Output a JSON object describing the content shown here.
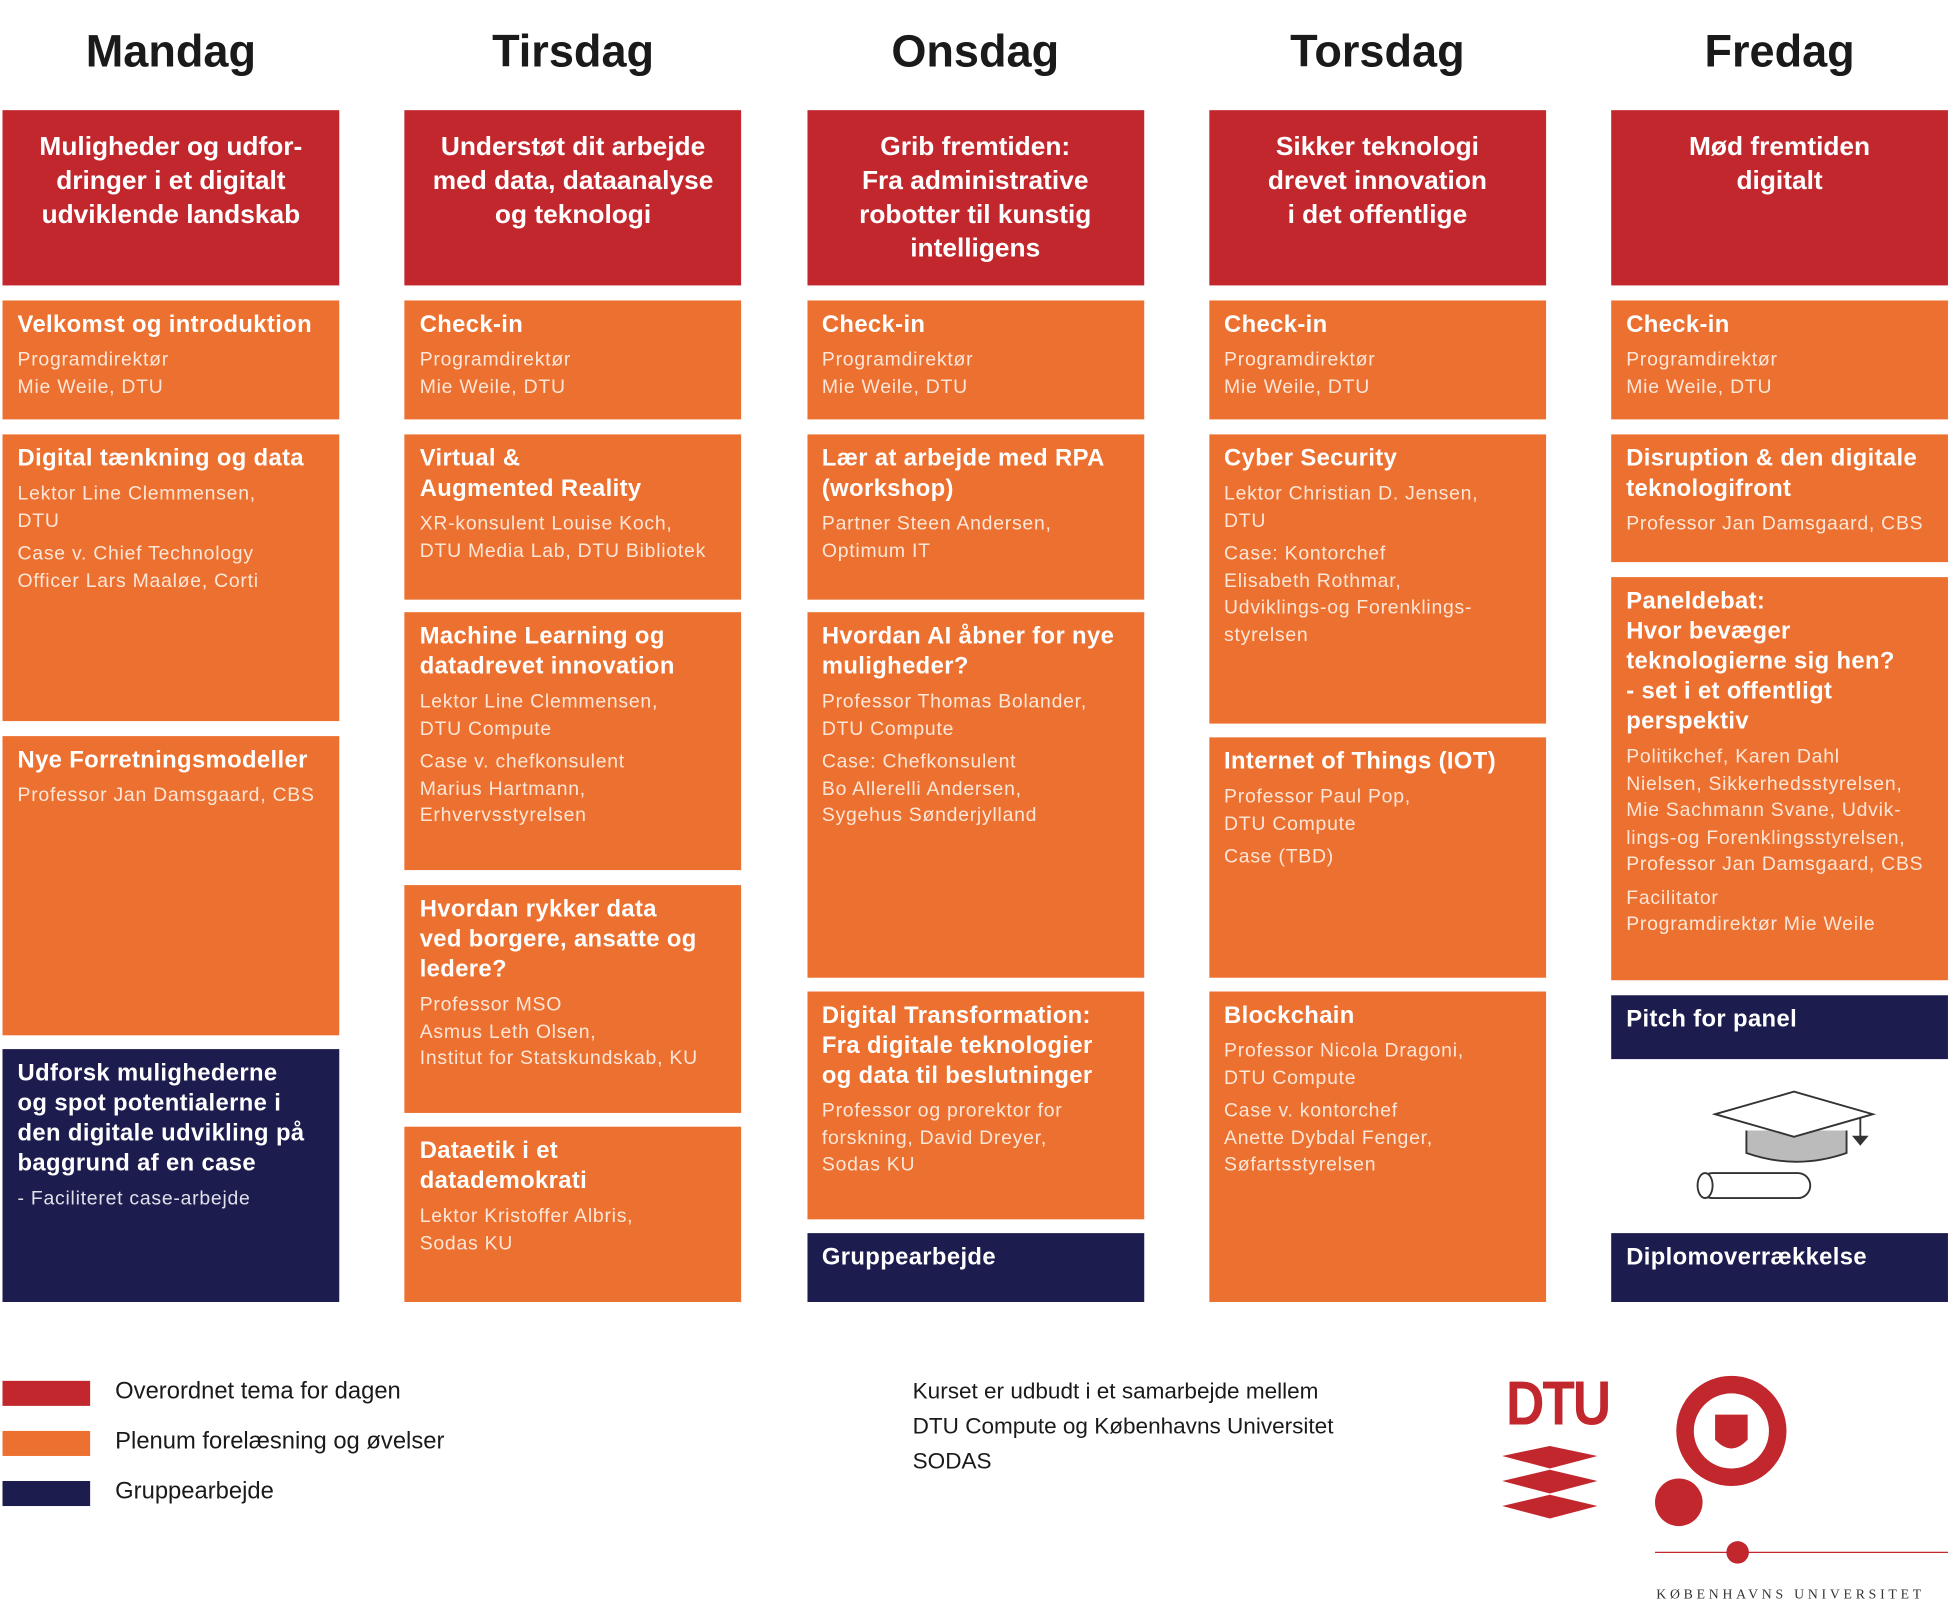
{
  "days": [
    {
      "name": "Mandag",
      "theme": [
        "Muligheder og udfor-",
        "dringer i et digitalt",
        "udviklende landskab"
      ],
      "blocks": [
        {
          "color": "#ec7130",
          "title": [
            "Velkomst og introduktion"
          ],
          "paras": [
            [
              "Programdirektør",
              "Mie Weile, DTU"
            ]
          ]
        },
        {
          "color": "#ec7130",
          "title": [
            "Digital tænkning og data"
          ],
          "paras": [
            [
              "Lektor Line Clemmensen,",
              "DTU"
            ],
            [
              "Case v. Chief Technology",
              "Officer Lars Maaløe, Corti"
            ]
          ]
        },
        {
          "color": "#ec7130",
          "title": [
            "Nye Forretningsmodeller"
          ],
          "paras": [
            [
              "Professor Jan Damsgaard, CBS"
            ]
          ]
        },
        {
          "color": "#1d1c4f",
          "title": [
            "Udforsk mulighederne",
            "og spot potentialerne i",
            "den digitale udvikling på",
            "baggrund af en case"
          ],
          "paras": [
            [
              "- Faciliteret case-arbejde"
            ]
          ]
        }
      ]
    },
    {
      "name": "Tirsdag",
      "theme": [
        "Understøt dit arbejde",
        "med data, dataanalyse",
        "og teknologi"
      ],
      "blocks": [
        {
          "color": "#ec7130",
          "title": [
            "Check-in"
          ],
          "paras": [
            [
              "Programdirektør",
              "Mie Weile, DTU"
            ]
          ]
        },
        {
          "color": "#ec7130",
          "title": [
            "Virtual &",
            "Augmented Reality"
          ],
          "paras": [
            [
              "XR-konsulent Louise Koch,",
              "DTU Media Lab, DTU Bibliotek"
            ]
          ]
        },
        {
          "color": "#ec7130",
          "title": [
            "Machine Learning og",
            "datadrevet innovation"
          ],
          "paras": [
            [
              "Lektor Line Clemmensen,",
              "DTU Compute"
            ],
            [
              "Case v. chefkonsulent",
              "Marius Hartmann,",
              "Erhvervsstyrelsen"
            ]
          ]
        },
        {
          "color": "#ec7130",
          "title": [
            "Hvordan rykker data",
            "ved borgere, ansatte og",
            "ledere?"
          ],
          "paras": [
            [
              "Professor MSO",
              "Asmus Leth Olsen,",
              "Institut for Statskundskab, KU"
            ]
          ]
        },
        {
          "color": "#ec7130",
          "title": [
            "Dataetik i et",
            "datademokrati"
          ],
          "paras": [
            [
              "Lektor Kristoffer Albris,",
              "Sodas KU"
            ]
          ]
        }
      ]
    },
    {
      "name": "Onsdag",
      "theme": [
        "Grib fremtiden:",
        "Fra administrative",
        "robotter til kunstig",
        "intelligens"
      ],
      "blocks": [
        {
          "color": "#ec7130",
          "title": [
            "Check-in"
          ],
          "paras": [
            [
              "Programdirektør",
              " Mie Weile, DTU"
            ]
          ]
        },
        {
          "color": "#ec7130",
          "title": [
            "Lær at arbejde med RPA",
            "(workshop)"
          ],
          "paras": [
            [
              "Partner Steen Andersen,",
              "Optimum IT"
            ]
          ]
        },
        {
          "color": "#ec7130",
          "title": [
            "Hvordan AI åbner for nye",
            "muligheder?"
          ],
          "paras": [
            [
              "Professor Thomas Bolander,",
              "DTU Compute"
            ],
            [
              "Case: Chefkonsulent",
              "Bo Allerelli Andersen,",
              "Sygehus Sønderjylland"
            ]
          ]
        },
        {
          "color": "#ec7130",
          "title": [
            "Digital Transformation:",
            "Fra digitale teknologier",
            "og data til beslutninger"
          ],
          "paras": [
            [
              "Professor og prorektor for",
              "forskning, David Dreyer,",
              "Sodas KU"
            ]
          ]
        },
        {
          "color": "#1d1c4f",
          "title": [
            "Gruppearbejde"
          ],
          "paras": []
        }
      ]
    },
    {
      "name": "Torsdag",
      "theme": [
        "Sikker teknologi",
        "drevet innovation",
        "i det offentlige"
      ],
      "blocks": [
        {
          "color": "#ec7130",
          "title": [
            "Check-in"
          ],
          "paras": [
            [
              "Programdirektør",
              " Mie Weile, DTU"
            ]
          ]
        },
        {
          "color": "#ec7130",
          "title": [
            "Cyber Security"
          ],
          "paras": [
            [
              "Lektor Christian D. Jensen,",
              "DTU"
            ],
            [
              "Case: Kontorchef",
              "Elisabeth Rothmar,",
              "Udviklings-og Forenklings-",
              "styrelsen"
            ]
          ]
        },
        {
          "color": "#ec7130",
          "title": [
            "Internet of Things (IOT)"
          ],
          "paras": [
            [
              "Professor Paul Pop,",
              "DTU Compute"
            ],
            [
              "Case (TBD)"
            ]
          ]
        },
        {
          "color": "#ec7130",
          "title": [
            "Blockchain"
          ],
          "paras": [
            [
              "Professor Nicola Dragoni,",
              "DTU Compute"
            ],
            [
              "Case v. kontorchef",
              "Anette Dybdal Fenger,",
              "Søfartsstyrelsen"
            ]
          ]
        }
      ]
    },
    {
      "name": "Fredag",
      "theme": [
        "Mød fremtiden",
        "digitalt"
      ],
      "blocks": [
        {
          "color": "#ec7130",
          "title": [
            "Check-in"
          ],
          "paras": [
            [
              "Programdirektør",
              " Mie Weile, DTU"
            ]
          ]
        },
        {
          "color": "#ec7130",
          "title": [
            "Disruption & den digitale",
            "teknologifront"
          ],
          "paras": [
            [
              "Professor Jan Damsgaard, CBS"
            ]
          ]
        },
        {
          "color": "#ec7130",
          "title": [
            "Paneldebat:",
            "Hvor bevæger",
            "teknologierne sig hen?",
            "- set i et offentligt",
            "perspektiv"
          ],
          "paras": [
            [
              "Politikchef, Karen Dahl",
              "Nielsen, Sikkerhedsstyrelsen,",
              "Mie Sachmann Svane, Udvik-",
              "lings-og Forenklingsstyrelsen,",
              "Professor Jan Damsgaard, CBS"
            ],
            [
              "Facilitator",
              "Programdirektør Mie Weile"
            ]
          ]
        },
        {
          "color": "#1d1c4f",
          "title": [
            "Pitch for panel"
          ],
          "paras": []
        },
        {
          "color": "#1d1c4f",
          "title": [
            "Diplomoverrækkelse"
          ],
          "paras": []
        }
      ]
    }
  ],
  "legend": [
    {
      "color": "#c1272d",
      "label": "Overordnet tema for dagen"
    },
    {
      "color": "#ec7130",
      "label": "Plenum forelæsning og øvelser"
    },
    {
      "color": "#1d1c4f",
      "label": "Gruppearbejde"
    }
  ],
  "footer": {
    "lines": [
      "Kurset er udbudt i et samarbejde mellem",
      "DTU Compute og Københavns Universitet",
      "SODAS"
    ]
  },
  "logos": {
    "dtu": "DTU",
    "ku": "KØBENHAVNS UNIVERSITET"
  },
  "theme_color": "#c1272d"
}
